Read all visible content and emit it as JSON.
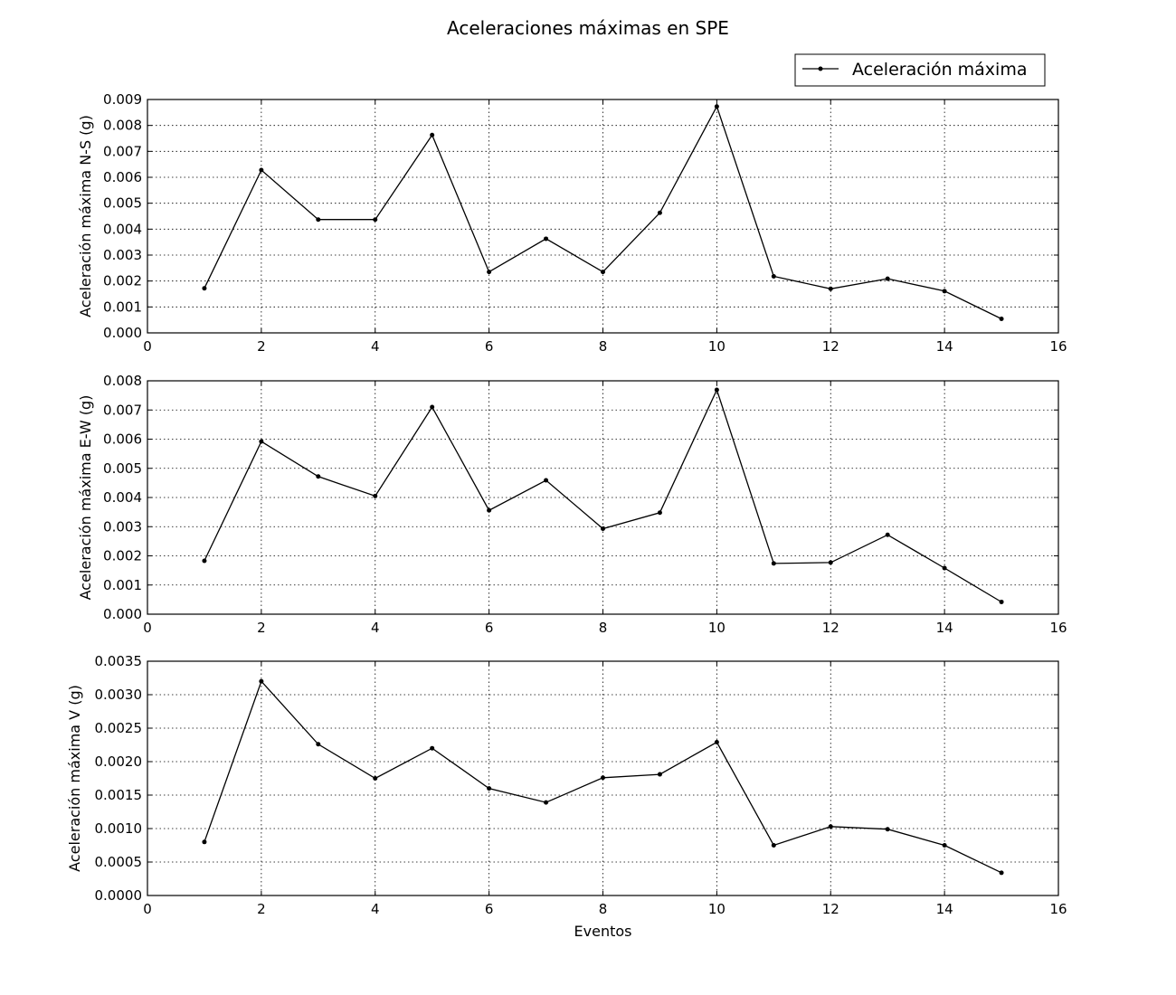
{
  "title": "Aceleraciones máximas en SPE",
  "legend": {
    "label": "Aceleración máxima",
    "placement": "top-right"
  },
  "colors": {
    "line": "#000000",
    "background": "#ffffff"
  },
  "chart_data": [
    {
      "type": "line",
      "series": [
        {
          "name": "Aceleración máxima",
          "x": [
            1,
            2,
            3,
            4,
            5,
            6,
            7,
            8,
            9,
            10,
            11,
            12,
            13,
            14,
            15
          ],
          "values": [
            0.00172,
            0.00628,
            0.00437,
            0.00437,
            0.00763,
            0.00235,
            0.00363,
            0.00235,
            0.00463,
            0.00873,
            0.00218,
            0.0017,
            0.00209,
            0.00161,
            0.00054
          ]
        }
      ],
      "xlabel": "",
      "ylabel": "Aceleración máxima N-S (g)",
      "xlim": [
        0,
        16
      ],
      "ylim": [
        0,
        0.009
      ],
      "xticks": [
        "0",
        "2",
        "4",
        "6",
        "8",
        "10",
        "12",
        "14",
        "16"
      ],
      "yticks": [
        "0.000",
        "0.001",
        "0.002",
        "0.003",
        "0.004",
        "0.005",
        "0.006",
        "0.007",
        "0.008",
        "0.009"
      ],
      "grid": true
    },
    {
      "type": "line",
      "series": [
        {
          "name": "Aceleración máxima",
          "x": [
            1,
            2,
            3,
            4,
            5,
            6,
            7,
            8,
            9,
            10,
            11,
            12,
            13,
            14,
            15
          ],
          "values": [
            0.00183,
            0.00592,
            0.00472,
            0.00405,
            0.0071,
            0.00356,
            0.00459,
            0.00293,
            0.00348,
            0.00769,
            0.00174,
            0.00177,
            0.00272,
            0.00158,
            0.00042
          ]
        }
      ],
      "xlabel": "",
      "ylabel": "Aceleración máxima E-W (g)",
      "xlim": [
        0,
        16
      ],
      "ylim": [
        0,
        0.008
      ],
      "xticks": [
        "0",
        "2",
        "4",
        "6",
        "8",
        "10",
        "12",
        "14",
        "16"
      ],
      "yticks": [
        "0.000",
        "0.001",
        "0.002",
        "0.003",
        "0.004",
        "0.005",
        "0.006",
        "0.007",
        "0.008"
      ],
      "grid": true
    },
    {
      "type": "line",
      "series": [
        {
          "name": "Aceleración máxima",
          "x": [
            1,
            2,
            3,
            4,
            5,
            6,
            7,
            8,
            9,
            10,
            11,
            12,
            13,
            14,
            15
          ],
          "values": [
            0.0008,
            0.0032,
            0.00226,
            0.00175,
            0.0022,
            0.0016,
            0.00139,
            0.00176,
            0.00181,
            0.00229,
            0.00075,
            0.00103,
            0.00099,
            0.00075,
            0.00034
          ]
        }
      ],
      "xlabel": "Eventos",
      "ylabel": "Aceleración máxima V (g)",
      "xlim": [
        0,
        16
      ],
      "ylim": [
        0,
        0.0035
      ],
      "xticks": [
        "0",
        "2",
        "4",
        "6",
        "8",
        "10",
        "12",
        "14",
        "16"
      ],
      "yticks": [
        "0.0000",
        "0.0005",
        "0.0010",
        "0.0015",
        "0.0020",
        "0.0025",
        "0.0030",
        "0.0035"
      ],
      "grid": true
    }
  ]
}
